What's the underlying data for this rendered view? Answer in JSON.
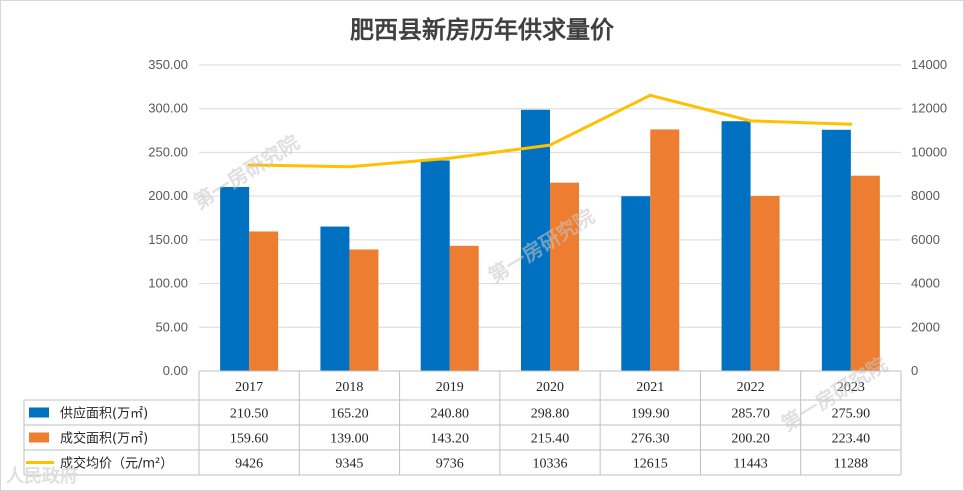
{
  "chart_data": {
    "type": "bar+line",
    "title": "肥西县新房历年供求量价",
    "categories": [
      "2017",
      "2018",
      "2019",
      "2020",
      "2021",
      "2022",
      "2023"
    ],
    "series": [
      {
        "name": "供应面积(万㎡)",
        "kind": "bar",
        "axis": "left",
        "color": "#0070c0",
        "values": [
          210.5,
          165.2,
          240.8,
          298.8,
          199.9,
          285.7,
          275.9
        ],
        "labels": [
          "210.50",
          "165.20",
          "240.80",
          "298.80",
          "199.90",
          "285.70",
          "275.90"
        ]
      },
      {
        "name": "成交面积(万㎡)",
        "kind": "bar",
        "axis": "left",
        "color": "#ed7d31",
        "values": [
          159.6,
          139.0,
          143.2,
          215.4,
          276.3,
          200.2,
          223.4
        ],
        "labels": [
          "159.60",
          "139.00",
          "143.20",
          "215.40",
          "276.30",
          "200.20",
          "223.40"
        ]
      },
      {
        "name": "成交均价（元/m²）",
        "kind": "line",
        "axis": "right",
        "color": "#ffc000",
        "values": [
          9426,
          9345,
          9736,
          10336,
          12615,
          11443,
          11288
        ],
        "labels": [
          "9426",
          "9345",
          "9736",
          "10336",
          "12615",
          "11443",
          "11288"
        ]
      }
    ],
    "y_left": {
      "min": 0,
      "max": 350,
      "step": 50,
      "ticks": [
        "0.00",
        "50.00",
        "100.00",
        "150.00",
        "200.00",
        "250.00",
        "300.00",
        "350.00"
      ]
    },
    "y_right": {
      "min": 0,
      "max": 14000,
      "step": 2000,
      "ticks": [
        "0",
        "2000",
        "4000",
        "6000",
        "8000",
        "10000",
        "12000",
        "14000"
      ]
    },
    "grid": true,
    "legend": "data-table-below"
  },
  "watermarks": [
    "第一房研究院",
    "第一房研究院",
    "第一房研究院",
    "人民政府"
  ]
}
